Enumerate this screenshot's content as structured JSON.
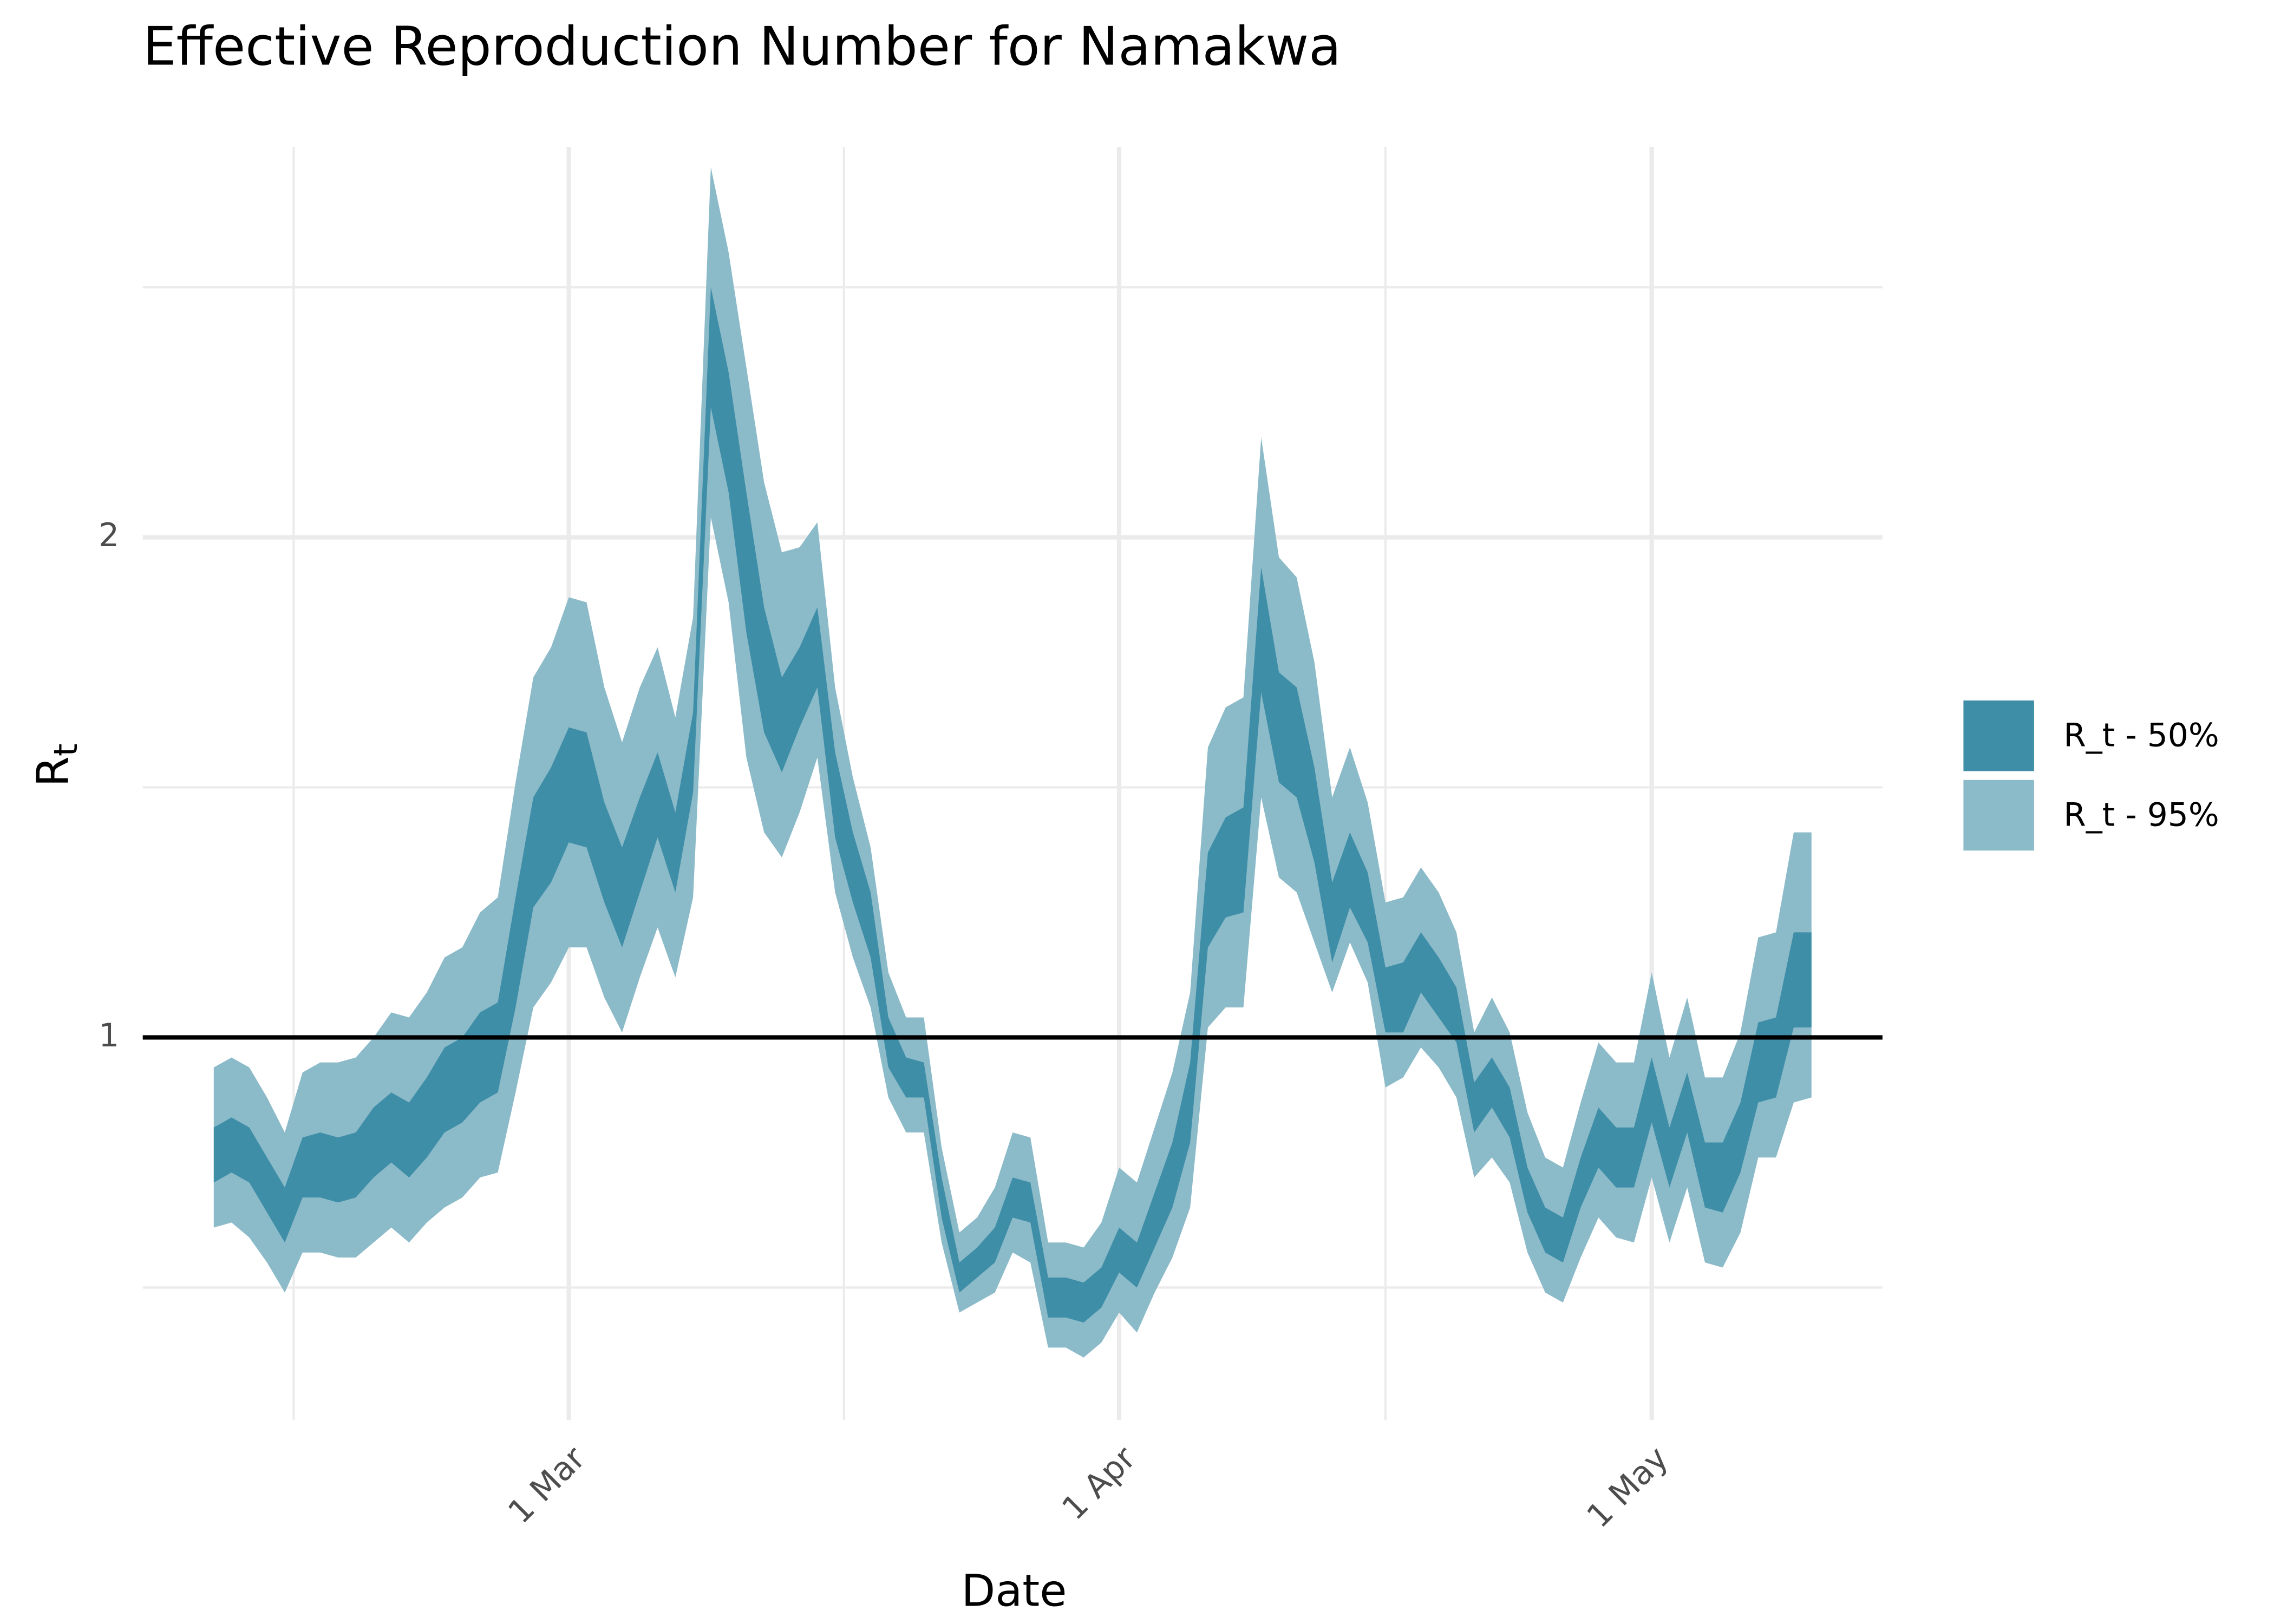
{
  "chart_data": {
    "type": "ribbon",
    "title": "Effective Reproduction Number for Namakwa",
    "x_label": "Date",
    "y_label": "R",
    "y_label_sub": "t",
    "x": [
      "9 Feb",
      "10 Feb",
      "11 Feb",
      "12 Feb",
      "13 Feb",
      "14 Feb",
      "15 Feb",
      "16 Feb",
      "17 Feb",
      "18 Feb",
      "19 Feb",
      "20 Feb",
      "21 Feb",
      "22 Feb",
      "23 Feb",
      "24 Feb",
      "25 Feb",
      "26 Feb",
      "27 Feb",
      "28 Feb",
      "1 Mar",
      "2 Mar",
      "3 Mar",
      "4 Mar",
      "5 Mar",
      "6 Mar",
      "7 Mar",
      "8 Mar",
      "9 Mar",
      "10 Mar",
      "11 Mar",
      "12 Mar",
      "13 Mar",
      "14 Mar",
      "15 Mar",
      "16 Mar",
      "17 Mar",
      "18 Mar",
      "19 Mar",
      "20 Mar",
      "21 Mar",
      "22 Mar",
      "23 Mar",
      "24 Mar",
      "25 Mar",
      "26 Mar",
      "27 Mar",
      "28 Mar",
      "29 Mar",
      "30 Mar",
      "31 Mar",
      "1 Apr",
      "2 Apr",
      "3 Apr",
      "4 Apr",
      "5 Apr",
      "6 Apr",
      "7 Apr",
      "8 Apr",
      "9 Apr",
      "10 Apr",
      "11 Apr",
      "12 Apr",
      "13 Apr",
      "14 Apr",
      "15 Apr",
      "16 Apr",
      "17 Apr",
      "18 Apr",
      "19 Apr",
      "20 Apr",
      "21 Apr",
      "22 Apr",
      "23 Apr",
      "24 Apr",
      "25 Apr",
      "26 Apr",
      "27 Apr",
      "28 Apr",
      "29 Apr",
      "30 Apr",
      "1 May",
      "2 May",
      "3 May",
      "4 May",
      "5 May",
      "6 May",
      "7 May",
      "8 May",
      "9 May",
      "10 May"
    ],
    "series": [
      {
        "name": "R_t - 50%",
        "color": "#3f8ea8",
        "lower": [
          0.71,
          0.73,
          0.71,
          0.65,
          0.59,
          0.68,
          0.68,
          0.67,
          0.68,
          0.72,
          0.75,
          0.72,
          0.76,
          0.81,
          0.83,
          0.87,
          0.89,
          1.06,
          1.26,
          1.31,
          1.39,
          1.38,
          1.27,
          1.18,
          1.29,
          1.4,
          1.29,
          1.49,
          2.26,
          2.09,
          1.81,
          1.61,
          1.53,
          1.62,
          1.7,
          1.4,
          1.27,
          1.16,
          0.94,
          0.88,
          0.88,
          0.64,
          0.49,
          0.52,
          0.55,
          0.64,
          0.63,
          0.44,
          0.44,
          0.43,
          0.46,
          0.53,
          0.5,
          0.58,
          0.66,
          0.79,
          1.18,
          1.24,
          1.25,
          1.69,
          1.51,
          1.48,
          1.35,
          1.15,
          1.26,
          1.19,
          1.01,
          1.01,
          1.09,
          1.04,
          0.99,
          0.81,
          0.86,
          0.8,
          0.65,
          0.57,
          0.55,
          0.66,
          0.74,
          0.7,
          0.7,
          0.83,
          0.7,
          0.81,
          0.66,
          0.65,
          0.73,
          0.87,
          0.88,
          1.02,
          1.02
        ],
        "upper": [
          0.82,
          0.84,
          0.82,
          0.76,
          0.7,
          0.8,
          0.81,
          0.8,
          0.81,
          0.86,
          0.89,
          0.87,
          0.92,
          0.98,
          1.0,
          1.05,
          1.07,
          1.28,
          1.48,
          1.54,
          1.62,
          1.61,
          1.47,
          1.38,
          1.48,
          1.57,
          1.45,
          1.65,
          2.5,
          2.33,
          2.09,
          1.86,
          1.72,
          1.78,
          1.86,
          1.57,
          1.41,
          1.29,
          1.04,
          0.96,
          0.95,
          0.72,
          0.55,
          0.58,
          0.62,
          0.72,
          0.71,
          0.52,
          0.52,
          0.51,
          0.54,
          0.62,
          0.59,
          0.69,
          0.79,
          0.95,
          1.37,
          1.44,
          1.46,
          1.94,
          1.73,
          1.7,
          1.54,
          1.31,
          1.41,
          1.33,
          1.14,
          1.15,
          1.21,
          1.16,
          1.1,
          0.91,
          0.96,
          0.9,
          0.74,
          0.66,
          0.64,
          0.76,
          0.86,
          0.82,
          0.82,
          0.96,
          0.82,
          0.93,
          0.79,
          0.79,
          0.87,
          1.03,
          1.04,
          1.21,
          1.21
        ]
      },
      {
        "name": "R_t - 95%",
        "color": "#8bbac9",
        "lower": [
          0.62,
          0.63,
          0.6,
          0.55,
          0.49,
          0.57,
          0.57,
          0.56,
          0.56,
          0.59,
          0.62,
          0.59,
          0.63,
          0.66,
          0.68,
          0.72,
          0.73,
          0.89,
          1.06,
          1.11,
          1.18,
          1.18,
          1.08,
          1.01,
          1.12,
          1.22,
          1.12,
          1.28,
          2.04,
          1.87,
          1.56,
          1.41,
          1.36,
          1.45,
          1.56,
          1.29,
          1.16,
          1.06,
          0.88,
          0.81,
          0.81,
          0.59,
          0.45,
          0.47,
          0.49,
          0.57,
          0.55,
          0.38,
          0.38,
          0.36,
          0.39,
          0.45,
          0.41,
          0.49,
          0.56,
          0.66,
          1.02,
          1.06,
          1.06,
          1.48,
          1.32,
          1.29,
          1.19,
          1.09,
          1.19,
          1.11,
          0.9,
          0.92,
          0.98,
          0.94,
          0.88,
          0.72,
          0.76,
          0.71,
          0.57,
          0.49,
          0.47,
          0.56,
          0.64,
          0.6,
          0.59,
          0.72,
          0.59,
          0.7,
          0.55,
          0.54,
          0.61,
          0.76,
          0.76,
          0.87,
          0.88
        ],
        "upper": [
          0.94,
          0.96,
          0.94,
          0.88,
          0.81,
          0.93,
          0.95,
          0.95,
          0.96,
          1.0,
          1.05,
          1.04,
          1.09,
          1.16,
          1.18,
          1.25,
          1.28,
          1.51,
          1.72,
          1.78,
          1.88,
          1.87,
          1.7,
          1.59,
          1.7,
          1.78,
          1.64,
          1.84,
          2.74,
          2.57,
          2.34,
          2.11,
          1.97,
          1.98,
          2.03,
          1.7,
          1.52,
          1.38,
          1.13,
          1.04,
          1.04,
          0.78,
          0.61,
          0.64,
          0.7,
          0.81,
          0.8,
          0.59,
          0.59,
          0.58,
          0.63,
          0.74,
          0.71,
          0.82,
          0.93,
          1.09,
          1.58,
          1.66,
          1.68,
          2.2,
          1.96,
          1.92,
          1.75,
          1.48,
          1.58,
          1.47,
          1.27,
          1.28,
          1.34,
          1.29,
          1.21,
          1.01,
          1.08,
          1.01,
          0.85,
          0.76,
          0.74,
          0.87,
          0.99,
          0.95,
          0.95,
          1.13,
          0.96,
          1.08,
          0.92,
          0.92,
          1.01,
          1.2,
          1.21,
          1.41,
          1.41
        ]
      }
    ],
    "hline": 1,
    "xlim": [
      "5 Feb",
      "14 May"
    ],
    "xticks": [
      "1 Mar",
      "1 Apr",
      "1 May"
    ],
    "ylim": [
      0.235,
      2.78
    ],
    "yticks": [
      1,
      2
    ],
    "grid": true,
    "legend": "right"
  }
}
